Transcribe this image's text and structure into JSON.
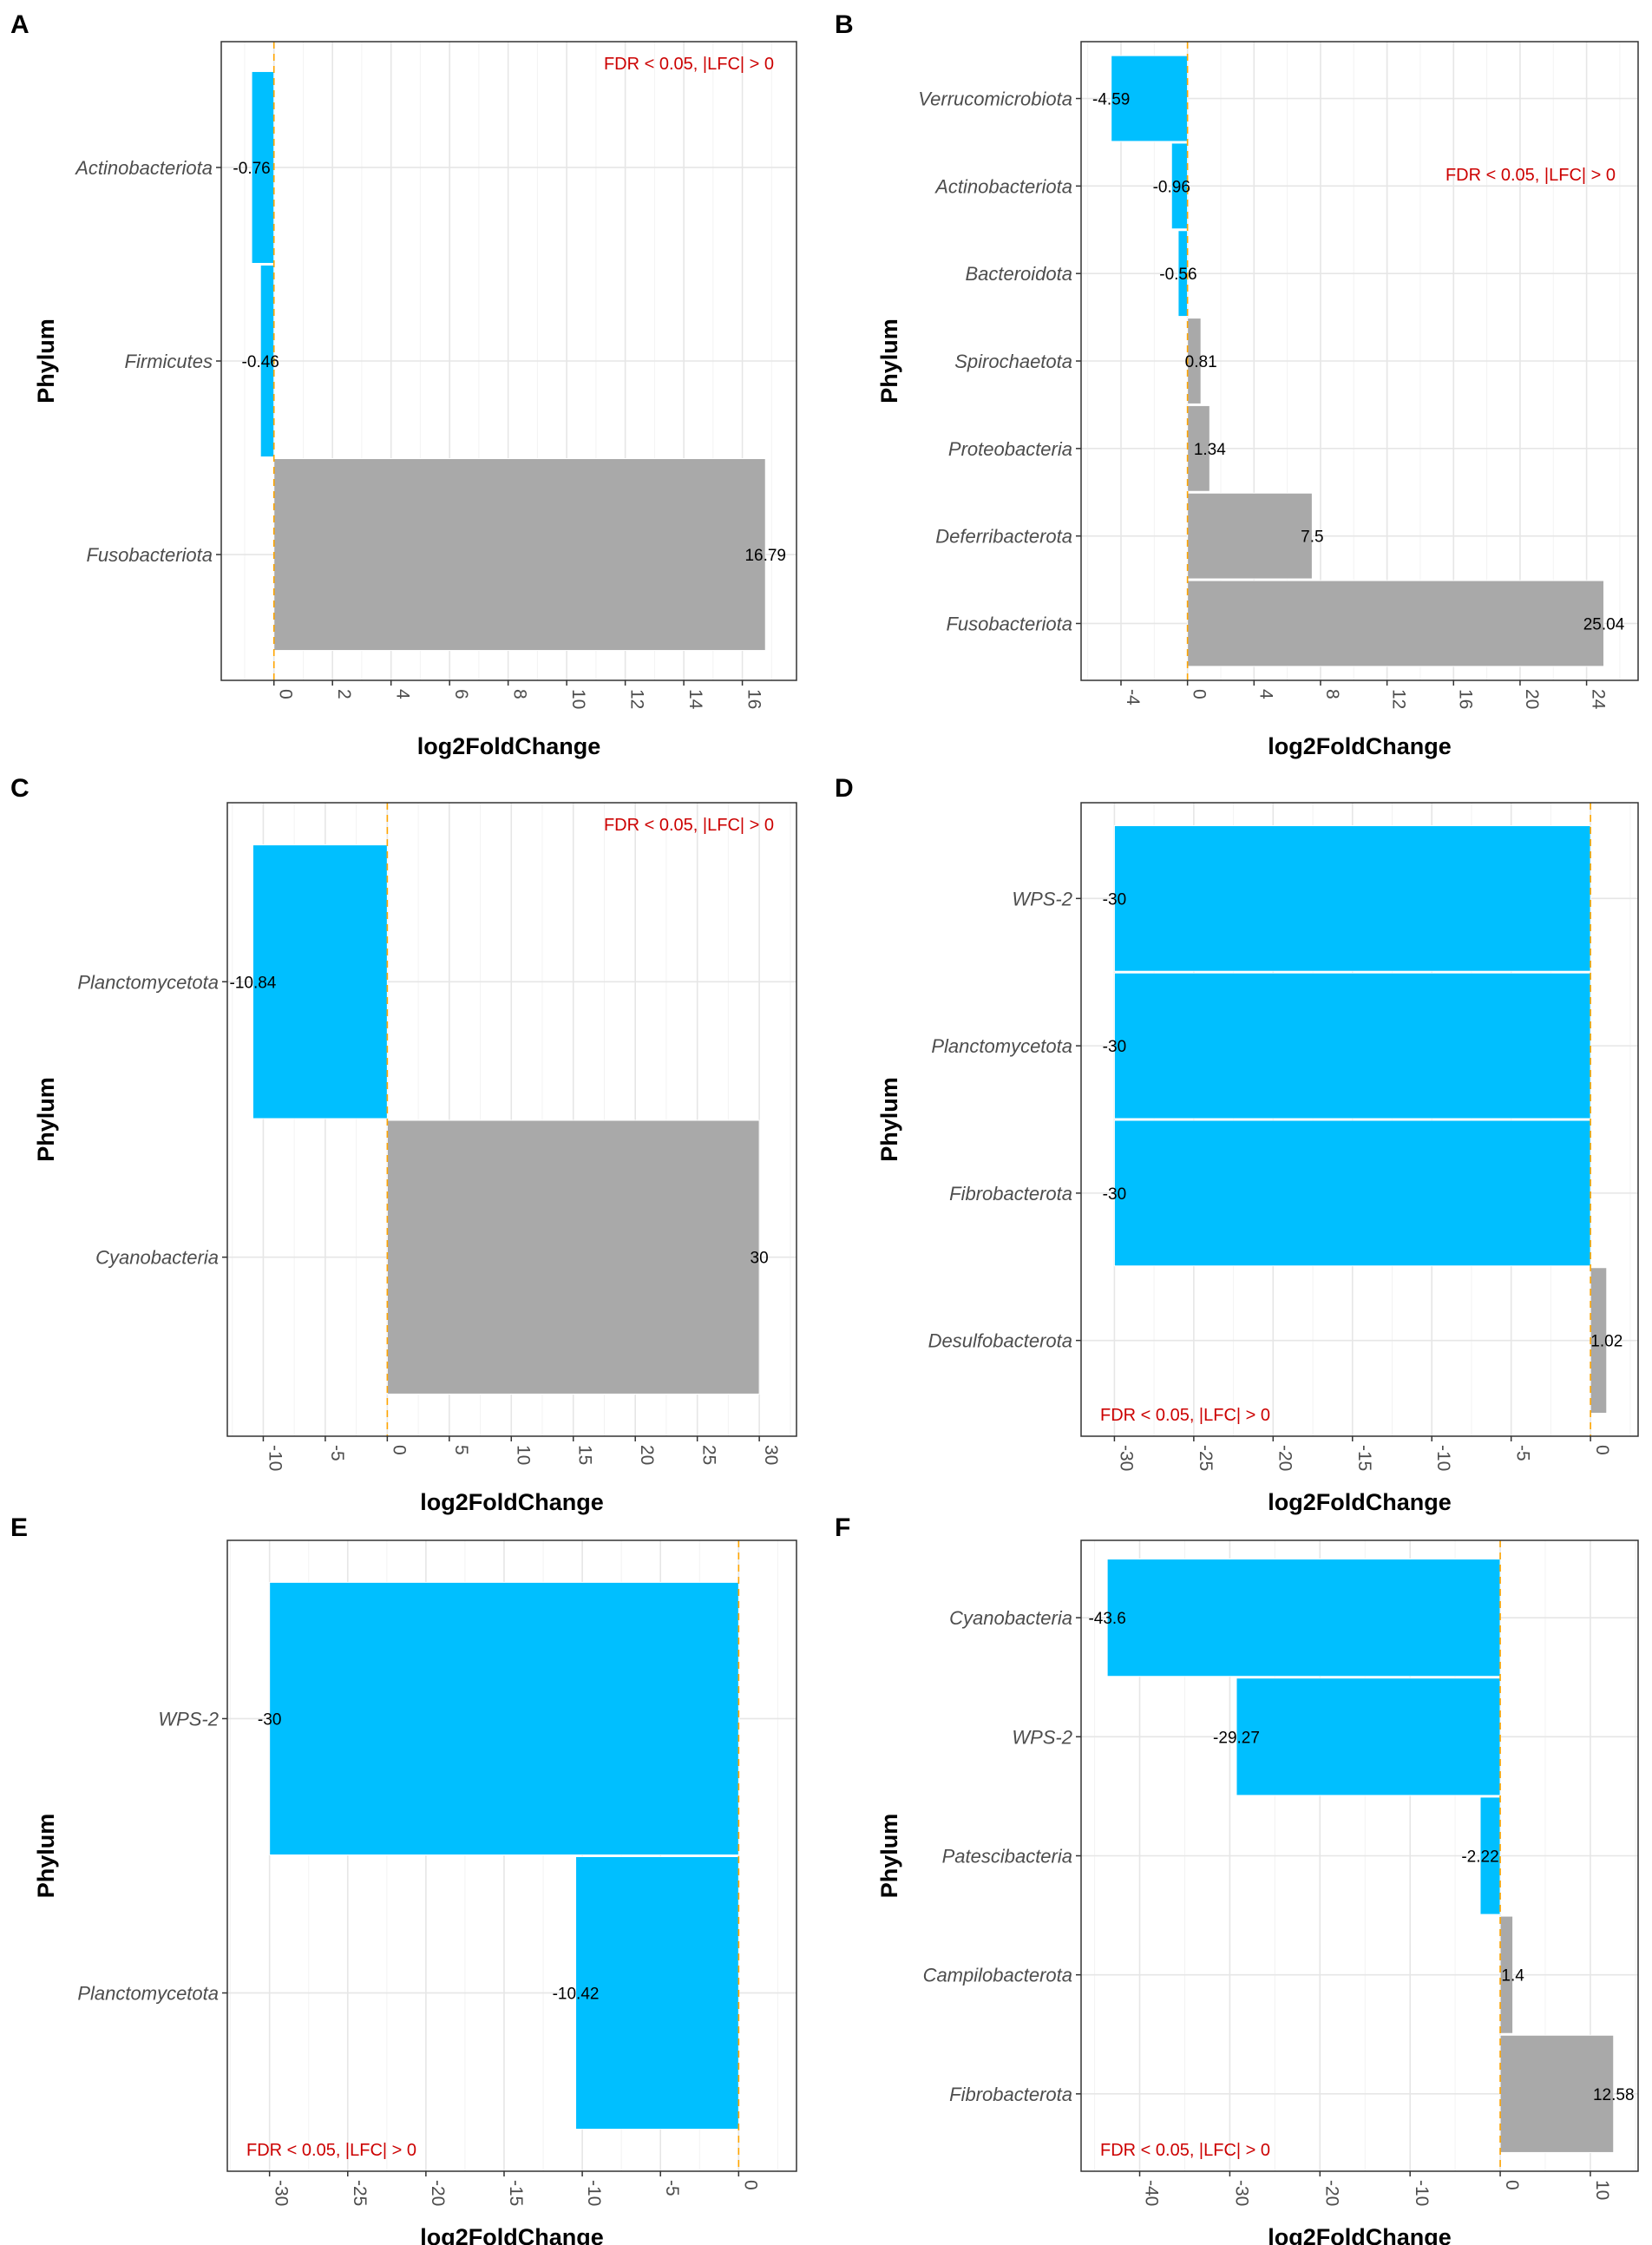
{
  "figure": {
    "colors": {
      "negative": "#00BFFF",
      "positive": "#A9A9A9",
      "zero_line": "#FFA500",
      "annotation": "#CC0000"
    }
  },
  "chart_data": [
    {
      "panel": "A",
      "type": "bar",
      "orientation": "horizontal",
      "xlabel": "log2FoldChange",
      "ylabel": "Phylum",
      "annotation": "FDR < 0.05, |LFC| > 0",
      "annotation_position": "top-right",
      "categories": [
        "Actinobacteriota",
        "Firmicutes",
        "Fusobacteriota"
      ],
      "values": [
        -0.76,
        -0.46,
        16.79
      ],
      "value_labels": [
        "-0.76",
        "-0.46",
        "16.79"
      ],
      "xlim": [
        -1.8,
        17.85
      ],
      "xticks": [
        0,
        2,
        4,
        6,
        8,
        10,
        12,
        14,
        16
      ],
      "xtick_labels": [
        "0",
        "2",
        "4",
        "6",
        "8",
        "10",
        "12",
        "14",
        "16"
      ],
      "grid": true
    },
    {
      "panel": "B",
      "type": "bar",
      "orientation": "horizontal",
      "xlabel": "log2FoldChange",
      "ylabel": "Phylum",
      "annotation": "FDR < 0.05, |LFC| > 0",
      "annotation_position": "top-right",
      "categories": [
        "Verrucomicrobiota",
        "Actinobacteriota",
        "Bacteroidota",
        "Spirochaetota",
        "Proteobacteria",
        "Deferribacterota",
        "Fusobacteriota"
      ],
      "values": [
        -4.59,
        -0.96,
        -0.56,
        0.81,
        1.34,
        7.5,
        25.04
      ],
      "value_labels": [
        "-4.59",
        "-0.96",
        "-0.56",
        "0.81",
        "1.34",
        "7.5",
        "25.04"
      ],
      "xlim": [
        -6.4,
        27.1
      ],
      "xticks": [
        -4,
        0,
        4,
        8,
        12,
        16,
        20,
        24
      ],
      "xtick_labels": [
        "-4",
        "0",
        "4",
        "8",
        "12",
        "16",
        "20",
        "24"
      ],
      "grid": true
    },
    {
      "panel": "C",
      "type": "bar",
      "orientation": "horizontal",
      "xlabel": "log2FoldChange",
      "ylabel": "Phylum",
      "annotation": "FDR < 0.05, |LFC| > 0",
      "annotation_position": "top-right",
      "categories": [
        "Planctomycetota",
        "Cyanobacteria"
      ],
      "values": [
        -10.84,
        30
      ],
      "value_labels": [
        "-10.84",
        "30"
      ],
      "xlim": [
        -12.9,
        33.0
      ],
      "xticks": [
        -10,
        -5,
        0,
        5,
        10,
        15,
        20,
        25,
        30
      ],
      "xtick_labels": [
        "-10",
        "-5",
        "0",
        "5",
        "10",
        "15",
        "20",
        "25",
        "30"
      ],
      "grid": true
    },
    {
      "panel": "D",
      "type": "bar",
      "orientation": "horizontal",
      "xlabel": "log2FoldChange",
      "ylabel": "Phylum",
      "annotation": "FDR < 0.05, |LFC| > 0",
      "annotation_position": "bottom-left",
      "categories": [
        "WPS-2",
        "Planctomycetota",
        "Fibrobacterota",
        "Desulfobacterota"
      ],
      "values": [
        -30,
        -30,
        -30,
        1.02
      ],
      "value_labels": [
        "-30",
        "-30",
        "-30",
        "1.02"
      ],
      "xlim": [
        -32.1,
        3.0
      ],
      "xticks": [
        -30,
        -25,
        -20,
        -15,
        -10,
        -5,
        0
      ],
      "xtick_labels": [
        "-30",
        "-25",
        "-20",
        "-15",
        "-10",
        "-5",
        "0"
      ],
      "grid": true
    },
    {
      "panel": "E",
      "type": "bar",
      "orientation": "horizontal",
      "xlabel": "log2FoldChange",
      "ylabel": "Phylum",
      "annotation": "FDR < 0.05, |LFC| > 0",
      "annotation_position": "bottom-left",
      "categories": [
        "WPS-2",
        "Planctomycetota"
      ],
      "values": [
        -30,
        -10.42
      ],
      "value_labels": [
        "-30",
        "-10.42"
      ],
      "xlim": [
        -32.7,
        3.7
      ],
      "xticks": [
        -30,
        -25,
        -20,
        -15,
        -10,
        -5,
        0
      ],
      "xtick_labels": [
        "-30",
        "-25",
        "-20",
        "-15",
        "-10",
        "-5",
        "0"
      ],
      "grid": true
    },
    {
      "panel": "F",
      "type": "bar",
      "orientation": "horizontal",
      "xlabel": "log2FoldChange",
      "ylabel": "Phylum",
      "annotation": "FDR < 0.05, |LFC| > 0",
      "annotation_position": "bottom-left",
      "categories": [
        "Cyanobacteria",
        "WPS-2",
        "Patescibacteria",
        "Campilobacterota",
        "Fibrobacterota"
      ],
      "values": [
        -43.6,
        -29.27,
        -2.22,
        1.4,
        12.58
      ],
      "value_labels": [
        "-43.6",
        "-29.27",
        "-2.22",
        "1.4",
        "12.58"
      ],
      "xlim": [
        -46.5,
        15.3
      ],
      "xticks": [
        -40,
        -30,
        -20,
        -10,
        0,
        10
      ],
      "xtick_labels": [
        "-40",
        "-30",
        "-20",
        "-10",
        "0",
        "10"
      ],
      "grid": true
    }
  ]
}
